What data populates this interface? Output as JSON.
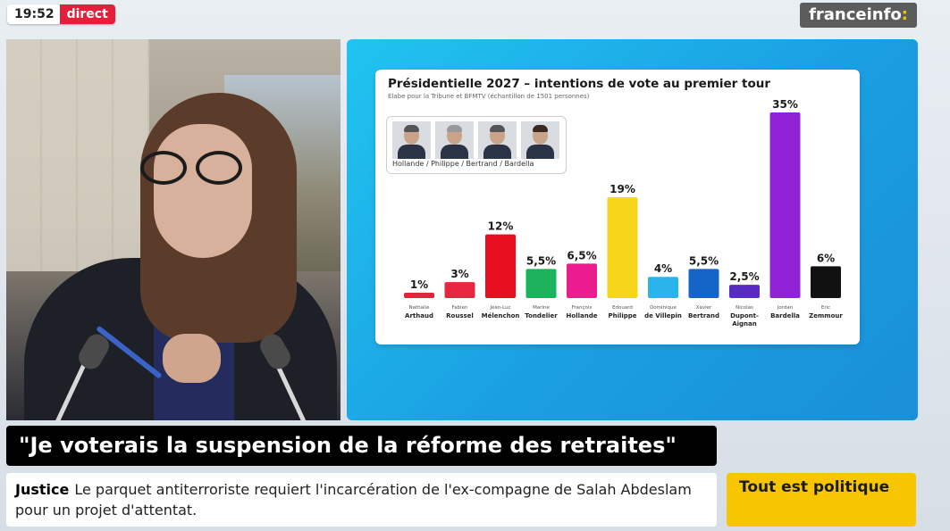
{
  "header": {
    "time": "19:52",
    "live_label": "direct",
    "channel_name": "franceinfo",
    "channel_colon": ":"
  },
  "chart_panel": {
    "legend_caption": "Hollande / Philippe / Bertrand / Bardella"
  },
  "chart_data": {
    "type": "bar",
    "title": "Présidentielle 2027 – intentions de vote au premier tour",
    "subtitle": "Elabe pour la Tribune et  BFMTV (échantillon de 1501 personnes)",
    "xlabel": "",
    "ylabel": "",
    "ylim": [
      0,
      35
    ],
    "categories": [
      {
        "first": "Nathalie",
        "last": "Arthaud"
      },
      {
        "first": "Fabien",
        "last": "Roussel"
      },
      {
        "first": "Jean-Luc",
        "last": "Mélenchon"
      },
      {
        "first": "Marine",
        "last": "Tondelier"
      },
      {
        "first": "François",
        "last": "Hollande"
      },
      {
        "first": "Edouard",
        "last": "Philippe"
      },
      {
        "first": "Dominique",
        "last": "de Villepin"
      },
      {
        "first": "Xavier",
        "last": "Bertrand"
      },
      {
        "first": "Nicolas",
        "last": "Dupont-",
        "last2": "Aignan"
      },
      {
        "first": "Jordan",
        "last": "Bardella"
      },
      {
        "first": "Eric",
        "last": "Zemmour"
      }
    ],
    "values": [
      1,
      3,
      12,
      5.5,
      6.5,
      19,
      4,
      5.5,
      2.5,
      35,
      6
    ],
    "value_labels": [
      "1%",
      "3%",
      "12%",
      "5,5%",
      "6,5%",
      "19%",
      "4%",
      "5,5%",
      "2,5%",
      "35%",
      "6%"
    ],
    "colors": [
      "#e0263a",
      "#e8263f",
      "#e8101f",
      "#1db35c",
      "#ec1c8f",
      "#f7d51a",
      "#29b4ec",
      "#1565c8",
      "#5a2bbf",
      "#8f22d6",
      "#111111"
    ],
    "grid": false,
    "legend": "top-left"
  },
  "banner": {
    "quote": "\"Je voterais la suspension de la réforme des retraites\""
  },
  "ticker": {
    "tag": "Justice",
    "text": "Le parquet antiterroriste requiert l'incarcération de l'ex-compagne de Salah Abdeslam pour un projet d'attentat."
  },
  "show": {
    "title": "Tout est politique"
  }
}
